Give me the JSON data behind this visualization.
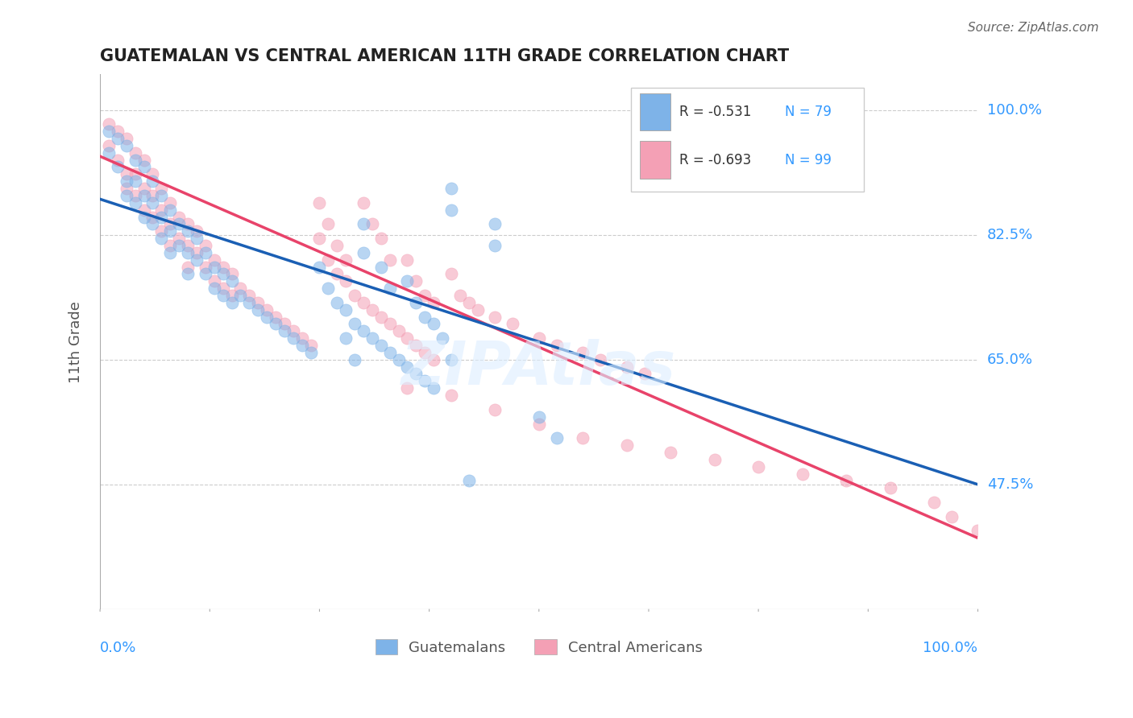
{
  "title": "GUATEMALAN VS CENTRAL AMERICAN 11TH GRADE CORRELATION CHART",
  "source": "Source: ZipAtlas.com",
  "ylabel": "11th Grade",
  "watermark": "ZIPAtlas",
  "ytick_labels": [
    "100.0%",
    "82.5%",
    "65.0%",
    "47.5%"
  ],
  "ytick_values": [
    1.0,
    0.825,
    0.65,
    0.475
  ],
  "xlim": [
    0.0,
    1.0
  ],
  "ylim": [
    0.3,
    1.05
  ],
  "legend_blue_r": "R = -0.531",
  "legend_blue_n": "N = 79",
  "legend_pink_r": "R = -0.693",
  "legend_pink_n": "N = 99",
  "blue_color": "#7EB3E8",
  "pink_color": "#F4A0B5",
  "blue_line_color": "#1A5FB4",
  "pink_line_color": "#E8436A",
  "scatter_alpha": 0.55,
  "marker_size": 120,
  "blue_points": [
    [
      0.01,
      0.97
    ],
    [
      0.01,
      0.94
    ],
    [
      0.02,
      0.96
    ],
    [
      0.02,
      0.92
    ],
    [
      0.03,
      0.95
    ],
    [
      0.03,
      0.9
    ],
    [
      0.03,
      0.88
    ],
    [
      0.04,
      0.93
    ],
    [
      0.04,
      0.9
    ],
    [
      0.04,
      0.87
    ],
    [
      0.05,
      0.92
    ],
    [
      0.05,
      0.88
    ],
    [
      0.05,
      0.85
    ],
    [
      0.06,
      0.9
    ],
    [
      0.06,
      0.87
    ],
    [
      0.06,
      0.84
    ],
    [
      0.07,
      0.88
    ],
    [
      0.07,
      0.85
    ],
    [
      0.07,
      0.82
    ],
    [
      0.08,
      0.86
    ],
    [
      0.08,
      0.83
    ],
    [
      0.08,
      0.8
    ],
    [
      0.09,
      0.84
    ],
    [
      0.09,
      0.81
    ],
    [
      0.1,
      0.83
    ],
    [
      0.1,
      0.8
    ],
    [
      0.1,
      0.77
    ],
    [
      0.11,
      0.82
    ],
    [
      0.11,
      0.79
    ],
    [
      0.12,
      0.8
    ],
    [
      0.12,
      0.77
    ],
    [
      0.13,
      0.78
    ],
    [
      0.13,
      0.75
    ],
    [
      0.14,
      0.77
    ],
    [
      0.14,
      0.74
    ],
    [
      0.15,
      0.76
    ],
    [
      0.15,
      0.73
    ],
    [
      0.16,
      0.74
    ],
    [
      0.17,
      0.73
    ],
    [
      0.18,
      0.72
    ],
    [
      0.19,
      0.71
    ],
    [
      0.2,
      0.7
    ],
    [
      0.21,
      0.69
    ],
    [
      0.22,
      0.68
    ],
    [
      0.23,
      0.67
    ],
    [
      0.24,
      0.66
    ],
    [
      0.25,
      0.78
    ],
    [
      0.26,
      0.75
    ],
    [
      0.27,
      0.73
    ],
    [
      0.28,
      0.72
    ],
    [
      0.29,
      0.7
    ],
    [
      0.3,
      0.69
    ],
    [
      0.31,
      0.68
    ],
    [
      0.32,
      0.67
    ],
    [
      0.33,
      0.66
    ],
    [
      0.34,
      0.65
    ],
    [
      0.35,
      0.64
    ],
    [
      0.36,
      0.63
    ],
    [
      0.37,
      0.62
    ],
    [
      0.38,
      0.61
    ],
    [
      0.4,
      0.89
    ],
    [
      0.4,
      0.86
    ],
    [
      0.45,
      0.84
    ],
    [
      0.45,
      0.81
    ],
    [
      0.3,
      0.84
    ],
    [
      0.3,
      0.8
    ],
    [
      0.32,
      0.78
    ],
    [
      0.33,
      0.75
    ],
    [
      0.35,
      0.76
    ],
    [
      0.36,
      0.73
    ],
    [
      0.37,
      0.71
    ],
    [
      0.38,
      0.7
    ],
    [
      0.28,
      0.68
    ],
    [
      0.29,
      0.65
    ],
    [
      0.39,
      0.68
    ],
    [
      0.4,
      0.65
    ],
    [
      0.5,
      0.57
    ],
    [
      0.52,
      0.54
    ],
    [
      0.42,
      0.48
    ]
  ],
  "pink_points": [
    [
      0.01,
      0.98
    ],
    [
      0.01,
      0.95
    ],
    [
      0.02,
      0.97
    ],
    [
      0.02,
      0.93
    ],
    [
      0.03,
      0.96
    ],
    [
      0.03,
      0.91
    ],
    [
      0.03,
      0.89
    ],
    [
      0.04,
      0.94
    ],
    [
      0.04,
      0.91
    ],
    [
      0.04,
      0.88
    ],
    [
      0.05,
      0.93
    ],
    [
      0.05,
      0.89
    ],
    [
      0.05,
      0.86
    ],
    [
      0.06,
      0.91
    ],
    [
      0.06,
      0.88
    ],
    [
      0.06,
      0.85
    ],
    [
      0.07,
      0.89
    ],
    [
      0.07,
      0.86
    ],
    [
      0.07,
      0.83
    ],
    [
      0.08,
      0.87
    ],
    [
      0.08,
      0.84
    ],
    [
      0.08,
      0.81
    ],
    [
      0.09,
      0.85
    ],
    [
      0.09,
      0.82
    ],
    [
      0.1,
      0.84
    ],
    [
      0.1,
      0.81
    ],
    [
      0.1,
      0.78
    ],
    [
      0.11,
      0.83
    ],
    [
      0.11,
      0.8
    ],
    [
      0.12,
      0.81
    ],
    [
      0.12,
      0.78
    ],
    [
      0.13,
      0.79
    ],
    [
      0.13,
      0.76
    ],
    [
      0.14,
      0.78
    ],
    [
      0.14,
      0.75
    ],
    [
      0.15,
      0.77
    ],
    [
      0.15,
      0.74
    ],
    [
      0.16,
      0.75
    ],
    [
      0.17,
      0.74
    ],
    [
      0.18,
      0.73
    ],
    [
      0.19,
      0.72
    ],
    [
      0.2,
      0.71
    ],
    [
      0.21,
      0.7
    ],
    [
      0.22,
      0.69
    ],
    [
      0.23,
      0.68
    ],
    [
      0.24,
      0.67
    ],
    [
      0.25,
      0.82
    ],
    [
      0.26,
      0.79
    ],
    [
      0.27,
      0.77
    ],
    [
      0.28,
      0.76
    ],
    [
      0.29,
      0.74
    ],
    [
      0.3,
      0.73
    ],
    [
      0.31,
      0.72
    ],
    [
      0.32,
      0.71
    ],
    [
      0.33,
      0.7
    ],
    [
      0.34,
      0.69
    ],
    [
      0.35,
      0.68
    ],
    [
      0.36,
      0.67
    ],
    [
      0.37,
      0.66
    ],
    [
      0.38,
      0.65
    ],
    [
      0.25,
      0.87
    ],
    [
      0.26,
      0.84
    ],
    [
      0.27,
      0.81
    ],
    [
      0.28,
      0.79
    ],
    [
      0.3,
      0.87
    ],
    [
      0.31,
      0.84
    ],
    [
      0.32,
      0.82
    ],
    [
      0.33,
      0.79
    ],
    [
      0.35,
      0.79
    ],
    [
      0.36,
      0.76
    ],
    [
      0.37,
      0.74
    ],
    [
      0.38,
      0.73
    ],
    [
      0.4,
      0.77
    ],
    [
      0.41,
      0.74
    ],
    [
      0.42,
      0.73
    ],
    [
      0.43,
      0.72
    ],
    [
      0.45,
      0.71
    ],
    [
      0.47,
      0.7
    ],
    [
      0.5,
      0.68
    ],
    [
      0.52,
      0.67
    ],
    [
      0.55,
      0.66
    ],
    [
      0.57,
      0.65
    ],
    [
      0.6,
      0.64
    ],
    [
      0.62,
      0.63
    ],
    [
      0.35,
      0.61
    ],
    [
      0.4,
      0.6
    ],
    [
      0.45,
      0.58
    ],
    [
      0.5,
      0.56
    ],
    [
      0.55,
      0.54
    ],
    [
      0.6,
      0.53
    ],
    [
      0.65,
      0.52
    ],
    [
      0.7,
      0.51
    ],
    [
      0.75,
      0.5
    ],
    [
      0.8,
      0.49
    ],
    [
      0.85,
      0.48
    ],
    [
      0.9,
      0.47
    ],
    [
      0.95,
      0.45
    ],
    [
      0.97,
      0.43
    ],
    [
      1.0,
      0.41
    ]
  ],
  "blue_line": {
    "x0": 0.0,
    "y0": 0.875,
    "x1": 1.0,
    "y1": 0.475
  },
  "pink_line": {
    "x0": 0.0,
    "y0": 0.935,
    "x1": 1.0,
    "y1": 0.4
  }
}
